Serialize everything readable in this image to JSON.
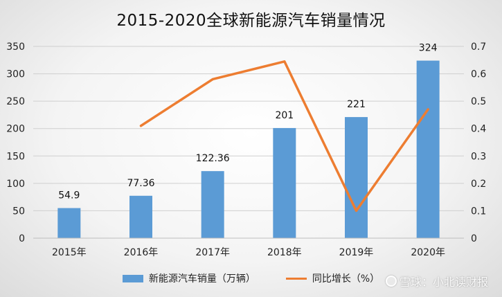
{
  "chart_data": {
    "type": "bar+line",
    "title": "2015-2020全球新能源汽车销量情况",
    "categories": [
      "2015年",
      "2016年",
      "2017年",
      "2018年",
      "2019年",
      "2020年"
    ],
    "series": [
      {
        "name": "新能源汽车销量（万辆）",
        "type": "bar",
        "axis": "left",
        "color": "#5b9bd5",
        "values": [
          54.9,
          77.36,
          122.36,
          201,
          221,
          324
        ],
        "labels": [
          "54.9",
          "77.36",
          "122.36",
          "201",
          "221",
          "324"
        ]
      },
      {
        "name": "同比增长（%）",
        "type": "line",
        "axis": "right",
        "color": "#ed7d31",
        "values": [
          null,
          0.41,
          0.58,
          0.645,
          0.1,
          0.47
        ]
      }
    ],
    "y_left": {
      "min": 0,
      "max": 350,
      "step": 50,
      "ticks": [
        "0",
        "50",
        "100",
        "150",
        "200",
        "250",
        "300",
        "350"
      ]
    },
    "y_right": {
      "min": 0,
      "max": 0.7,
      "step": 0.1,
      "ticks": [
        "0",
        "0.1",
        "0.2",
        "0.3",
        "0.4",
        "0.5",
        "0.6",
        "0.7"
      ]
    },
    "grid": true,
    "legend_position": "bottom"
  },
  "watermark": {
    "text": "雪球：小北读财报",
    "icon": "snowball-icon"
  }
}
